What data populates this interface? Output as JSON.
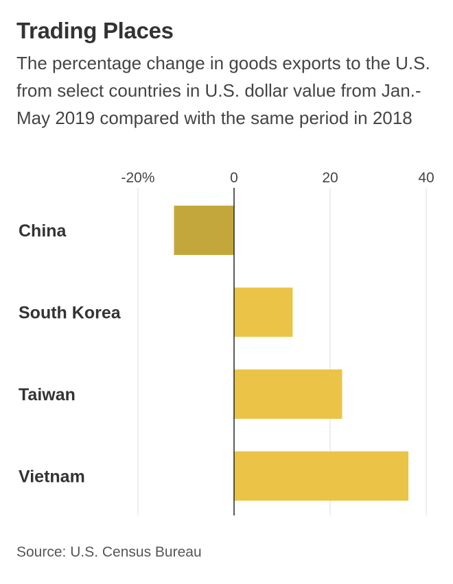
{
  "header": {
    "title": "Trading Places",
    "subtitle": "The percentage change in goods exports to the U.S. from select countries in U.S. dollar value from Jan.-May 2019 compared with the same period in 2018"
  },
  "footer": {
    "source": "Source: U.S. Census Bureau"
  },
  "chart_data": {
    "type": "bar",
    "orientation": "horizontal",
    "categories": [
      "China",
      "South Korea",
      "Taiwan",
      "Vietnam"
    ],
    "values": [
      -12.5,
      12.2,
      22.5,
      36.3
    ],
    "unit": "%",
    "xlim": [
      -20,
      40
    ],
    "xticks": [
      -20,
      0,
      20,
      40
    ],
    "xtick_labels": [
      "-20%",
      "0",
      "20",
      "40"
    ],
    "grid": "vertical",
    "legend": "none",
    "colors": {
      "negative": "#c4a73c",
      "positive": "#ebc447",
      "gridline": "#dddddd",
      "zero_line": "#222222"
    }
  }
}
